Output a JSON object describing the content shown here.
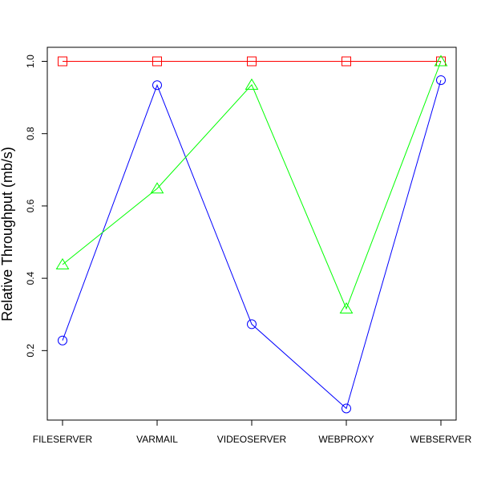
{
  "chart_data": {
    "type": "line",
    "title": "",
    "xlabel": "",
    "ylabel": "Relative Throughput (mb/s)",
    "categories": [
      "FILESERVER",
      "VARMAIL",
      "VIDEOSERVER",
      "WEBPROXY",
      "WEBSERVER"
    ],
    "yticks": [
      "0.2",
      "0.4",
      "0.6",
      "0.8",
      "1.0"
    ],
    "ylim": [
      0.04,
      1.0
    ],
    "grid": false,
    "series": [
      {
        "marker": "square",
        "color": "#FF0000",
        "values": [
          1.0,
          1.0,
          1.0,
          1.0,
          1.0
        ]
      },
      {
        "marker": "circle",
        "color": "#0000FF",
        "values": [
          0.228,
          0.934,
          0.273,
          0.04,
          0.948
        ]
      },
      {
        "marker": "triangle",
        "color": "#00FF00",
        "values": [
          0.438,
          0.648,
          0.935,
          0.316,
          1.0
        ]
      }
    ]
  }
}
